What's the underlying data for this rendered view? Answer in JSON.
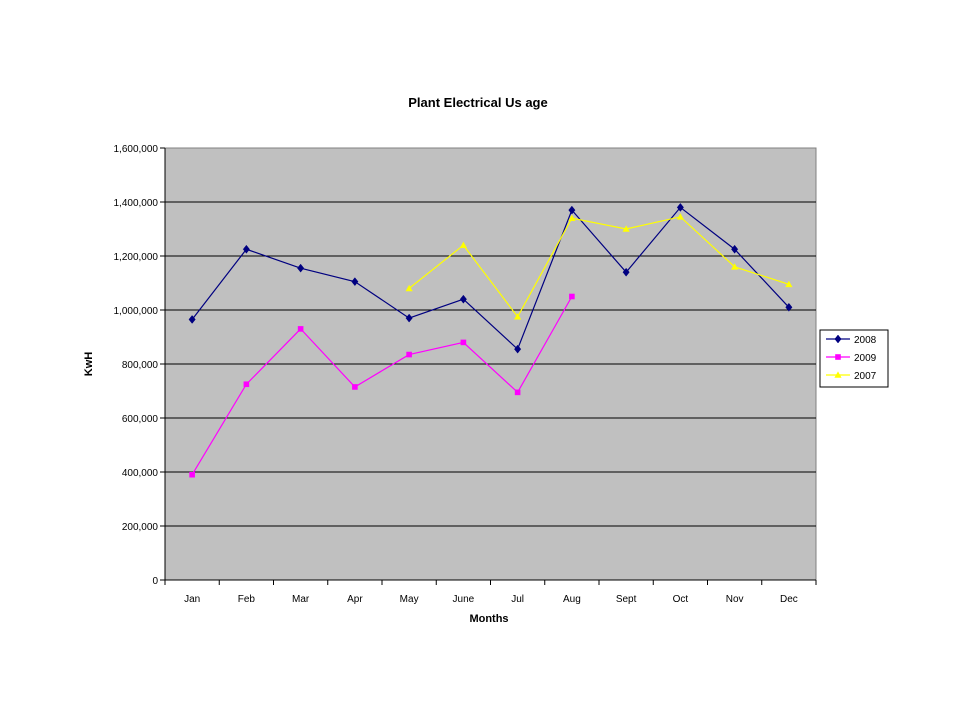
{
  "chart_data": {
    "type": "line",
    "title": "Plant Electrical Us age",
    "xlabel": "Months",
    "ylabel": "KwH",
    "categories": [
      "Jan",
      "Feb",
      "Mar",
      "Apr",
      "May",
      "June",
      "Jul",
      "Aug",
      "Sept",
      "Oct",
      "Nov",
      "Dec"
    ],
    "ylim": [
      0,
      1600000
    ],
    "ytick_labels": [
      "0",
      "200,000",
      "400,000",
      "600,000",
      "800,000",
      "1,000,000",
      "1,200,000",
      "1,400,000",
      "1,600,000"
    ],
    "yticks": [
      0,
      200000,
      400000,
      600000,
      800000,
      1000000,
      1200000,
      1400000,
      1600000
    ],
    "grid": true,
    "legend_position": "right",
    "plot_background": "#c0c0c0",
    "series": [
      {
        "name": "2008",
        "color": "#000080",
        "marker": "diamond",
        "values": [
          965000,
          1225000,
          1155000,
          1105000,
          970000,
          1040000,
          855000,
          1370000,
          1140000,
          1380000,
          1225000,
          1010000
        ]
      },
      {
        "name": "2009",
        "color": "#ff00ff",
        "marker": "square",
        "values": [
          390000,
          725000,
          930000,
          715000,
          835000,
          880000,
          695000,
          1050000,
          null,
          null,
          null,
          null
        ]
      },
      {
        "name": "2007",
        "color": "#ffff00",
        "marker": "triangle",
        "values": [
          null,
          null,
          null,
          null,
          1080000,
          1240000,
          975000,
          1340000,
          1300000,
          1345000,
          1160000,
          1095000
        ]
      }
    ]
  }
}
